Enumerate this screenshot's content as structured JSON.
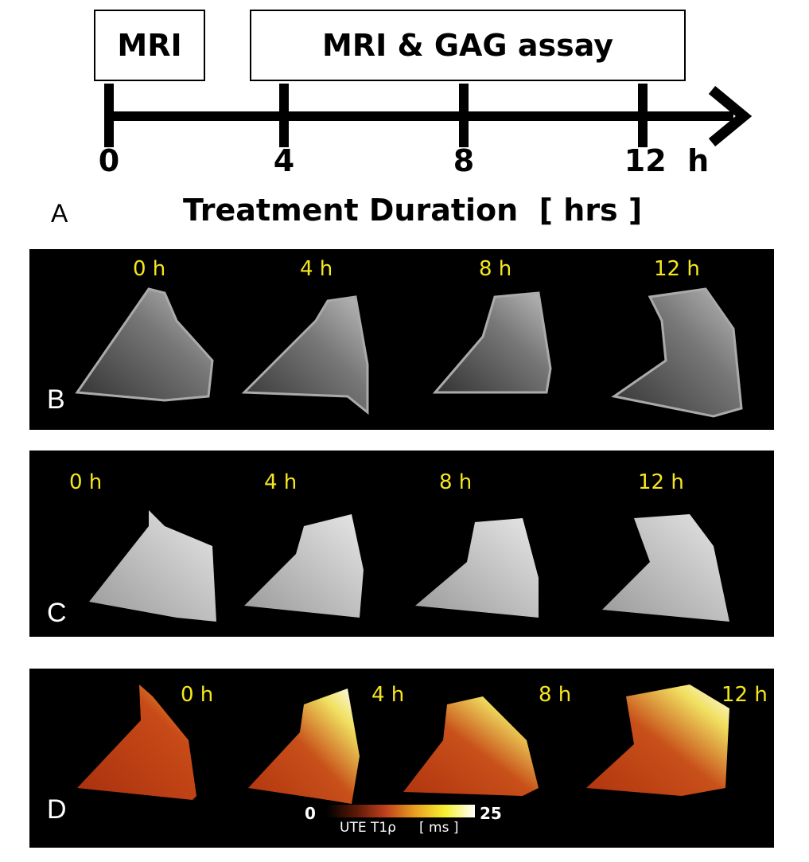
{
  "panel_a": {
    "label": "A",
    "boxes": [
      "MRI",
      "MRI & GAG assay"
    ],
    "ticks": [
      "0",
      "4",
      "8",
      "12  h"
    ],
    "axis_title": "Treatment Duration  [ hrs ]"
  },
  "panel_b": {
    "label": "B",
    "times": [
      "0 h",
      "4 h",
      "8 h",
      "12 h"
    ]
  },
  "panel_c": {
    "label": "C",
    "times": [
      "0 h",
      "4 h",
      "8 h",
      "12 h"
    ]
  },
  "panel_d": {
    "label": "D",
    "times": [
      "0 h",
      "4 h",
      "8 h",
      "12 h"
    ],
    "colorbar": {
      "min": "0",
      "max": "25",
      "label": "UTE T1ρ",
      "unit": "[ ms ]",
      "colors": [
        "#000000",
        "#5a1808",
        "#c0401c",
        "#e8a020",
        "#f5f030",
        "#ffffff"
      ]
    }
  }
}
